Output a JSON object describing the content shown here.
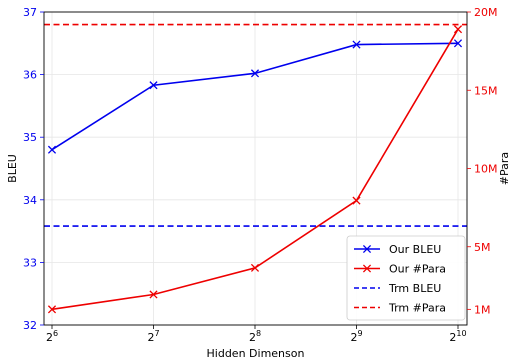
{
  "chart_data": {
    "type": "line",
    "xlabel": "Hidden Dimenson",
    "ylabel_left": "BLEU",
    "ylabel_right": "#Para",
    "x_exponents": [
      "6",
      "7",
      "8",
      "9",
      "10"
    ],
    "x_base": "2",
    "ylim_left": [
      32,
      37
    ],
    "ylim_right": [
      0,
      20
    ],
    "left_ticks": [
      {
        "value": 32,
        "label": "32"
      },
      {
        "value": 33,
        "label": "33"
      },
      {
        "value": 34,
        "label": "34"
      },
      {
        "value": 35,
        "label": "35"
      },
      {
        "value": 36,
        "label": "36"
      },
      {
        "value": 37,
        "label": "37"
      }
    ],
    "right_ticks": [
      {
        "value": 1,
        "label": "1M"
      },
      {
        "value": 5,
        "label": "5M"
      },
      {
        "value": 10,
        "label": "10M"
      },
      {
        "value": 15,
        "label": "15M"
      },
      {
        "value": 20,
        "label": "20M"
      }
    ],
    "grid": true,
    "legend_position": "bottom-right",
    "series": [
      {
        "name": "Our BLEU",
        "axis": "left",
        "color": "#0000ee",
        "style": "solid",
        "marker": "x",
        "values": [
          34.8,
          35.83,
          36.02,
          36.48,
          36.5
        ]
      },
      {
        "name": "Our #Para",
        "axis": "right",
        "color": "#ee0000",
        "style": "solid",
        "marker": "x",
        "values": [
          1.0,
          1.95,
          3.65,
          7.95,
          18.9
        ]
      },
      {
        "name": "Trm BLEU",
        "axis": "left",
        "color": "#0000ee",
        "style": "dashed",
        "marker": "none",
        "values": [
          33.58,
          33.58,
          33.58,
          33.58,
          33.58
        ]
      },
      {
        "name": "Trm #Para",
        "axis": "right",
        "color": "#ee0000",
        "style": "dashed",
        "marker": "none",
        "values": [
          19.2,
          19.2,
          19.2,
          19.2,
          19.2
        ]
      }
    ]
  }
}
